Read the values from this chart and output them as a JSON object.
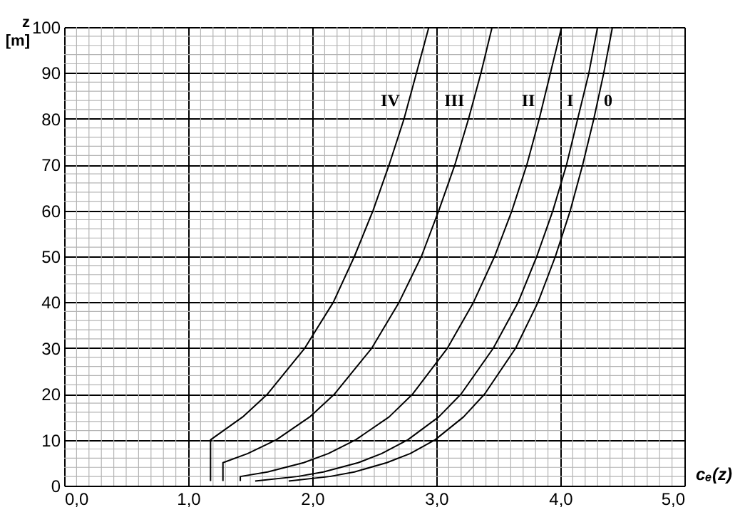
{
  "chart_data": {
    "type": "line",
    "xlabel": "cₑ(z)",
    "ylabel": "z [m]",
    "xlim": [
      0,
      5
    ],
    "ylim": [
      0,
      100
    ],
    "xticks": [
      {
        "value": 0,
        "label": "0,0"
      },
      {
        "value": 1,
        "label": "1,0"
      },
      {
        "value": 2,
        "label": "2,0"
      },
      {
        "value": 3,
        "label": "3,0"
      },
      {
        "value": 4,
        "label": "4,0"
      },
      {
        "value": 5,
        "label": "5,0"
      }
    ],
    "yticks": [
      0,
      10,
      20,
      30,
      40,
      50,
      60,
      70,
      80,
      90,
      100
    ],
    "grid": true,
    "marker": "none",
    "line_style": "solid",
    "series": [
      {
        "name": "IV",
        "color": "#000000",
        "x": [
          1.18,
          1.18,
          1.44,
          1.64,
          1.94,
          2.17,
          2.34,
          2.49,
          2.62,
          2.74,
          2.84,
          2.94
        ],
        "values": [
          1,
          10,
          15,
          20,
          30,
          40,
          50,
          60,
          70,
          80,
          90,
          100
        ]
      },
      {
        "name": "III",
        "color": "#000000",
        "x": [
          1.28,
          1.28,
          1.48,
          1.71,
          1.98,
          2.18,
          2.48,
          2.7,
          2.88,
          3.02,
          3.15,
          3.26,
          3.36,
          3.45
        ],
        "values": [
          1,
          5,
          7,
          10,
          15,
          20,
          30,
          40,
          50,
          60,
          70,
          80,
          90,
          100
        ]
      },
      {
        "name": "II",
        "color": "#000000",
        "x": [
          1.42,
          1.42,
          1.64,
          1.93,
          2.13,
          2.35,
          2.62,
          2.81,
          3.09,
          3.3,
          3.47,
          3.61,
          3.73,
          3.83,
          3.92,
          4.01
        ],
        "values": [
          1,
          2,
          3,
          5,
          7,
          10,
          15,
          20,
          30,
          40,
          50,
          60,
          70,
          80,
          90,
          100
        ]
      },
      {
        "name": "I",
        "color": "#000000",
        "x": [
          1.54,
          1.88,
          2.09,
          2.37,
          2.56,
          2.77,
          3.02,
          3.2,
          3.46,
          3.66,
          3.81,
          3.94,
          4.05,
          4.14,
          4.23,
          4.3
        ],
        "values": [
          1,
          2,
          3,
          5,
          7,
          10,
          15,
          20,
          30,
          40,
          50,
          60,
          70,
          80,
          90,
          100
        ]
      },
      {
        "name": "0",
        "color": "#000000",
        "x": [
          1.81,
          2.14,
          2.34,
          2.6,
          2.79,
          2.99,
          3.22,
          3.39,
          3.64,
          3.82,
          3.96,
          4.08,
          4.18,
          4.27,
          4.35,
          4.42
        ],
        "values": [
          1,
          2,
          3,
          5,
          7,
          10,
          15,
          20,
          30,
          40,
          50,
          60,
          70,
          80,
          90,
          100
        ]
      }
    ]
  }
}
